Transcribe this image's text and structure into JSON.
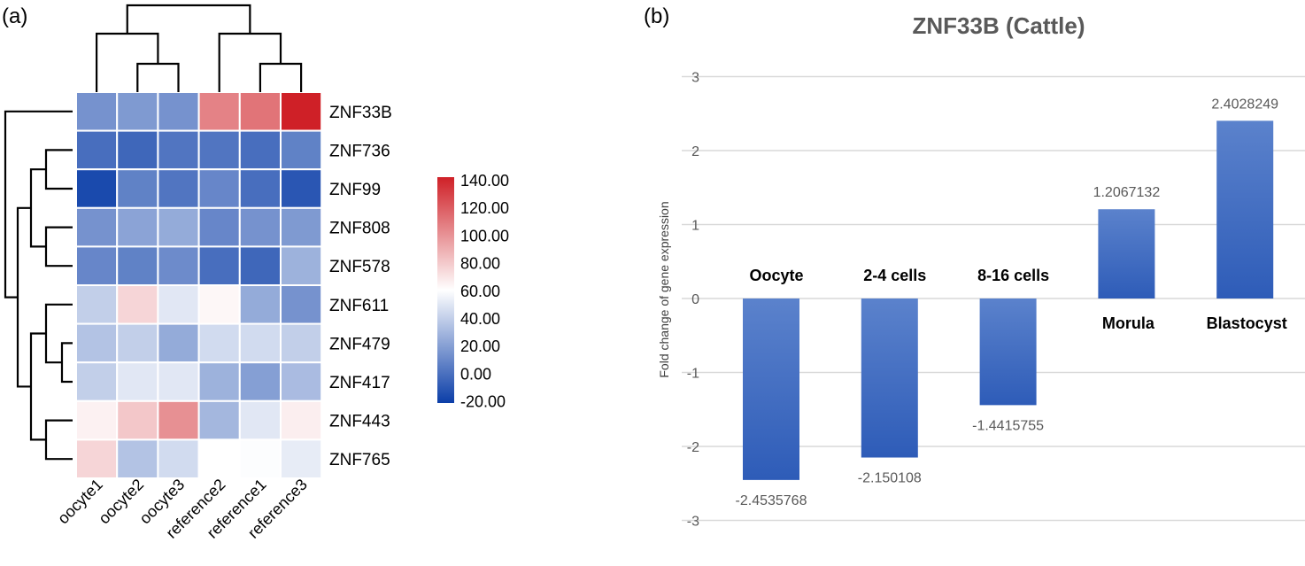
{
  "panel_labels": {
    "a": "(a)",
    "b": "(b)"
  },
  "chart_data": [
    {
      "type": "heatmap",
      "rows": [
        "ZNF33B",
        "ZNF736",
        "ZNF99",
        "ZNF808",
        "ZNF578",
        "ZNF611",
        "ZNF479",
        "ZNF417",
        "ZNF443",
        "ZNF765"
      ],
      "columns": [
        "oocyte1",
        "oocyte2",
        "oocyte3",
        "reference2",
        "reference1",
        "reference3"
      ],
      "values": [
        [
          15,
          18,
          15,
          105,
          110,
          140
        ],
        [
          0,
          -3,
          3,
          3,
          0,
          8
        ],
        [
          -15,
          8,
          3,
          10,
          0,
          -10
        ],
        [
          15,
          22,
          25,
          10,
          15,
          18
        ],
        [
          10,
          8,
          12,
          0,
          -3,
          28
        ],
        [
          40,
          75,
          50,
          63,
          25,
          15
        ],
        [
          35,
          40,
          25,
          45,
          45,
          40
        ],
        [
          40,
          50,
          50,
          28,
          20,
          32
        ],
        [
          65,
          80,
          100,
          30,
          50,
          66
        ],
        [
          75,
          35,
          45,
          60,
          59,
          52
        ]
      ],
      "colorbar": {
        "ticks": [
          "140.00",
          "120.00",
          "100.00",
          "80.00",
          "60.00",
          "40.00",
          "20.00",
          "0.00",
          "-20.00"
        ],
        "range": [
          -20,
          140
        ],
        "low_color": "#0b3ea8",
        "mid_color": "#ffffff",
        "high_color": "#cf2027"
      },
      "dendrograms": {
        "columns": true,
        "rows": true
      }
    },
    {
      "type": "bar",
      "title": "ZNF33B (Cattle)",
      "ylabel": "Fold change of gene expression",
      "xlabel": "",
      "categories": [
        "Oocyte",
        "2-4 cells",
        "8-16 cells",
        "Morula",
        "Blastocyst"
      ],
      "values": [
        -2.4535768,
        -2.150108,
        -1.4415755,
        1.2067132,
        2.4028249
      ],
      "value_labels": [
        "-2.4535768",
        "-2.150108",
        "-1.4415755",
        "1.2067132",
        "2.4028249"
      ],
      "ylim": [
        -3,
        3
      ],
      "yticks": [
        "3",
        "2",
        "1",
        "0",
        "-1",
        "-2",
        "-3"
      ],
      "grid": true,
      "bar_color": "#3a66c4"
    }
  ]
}
